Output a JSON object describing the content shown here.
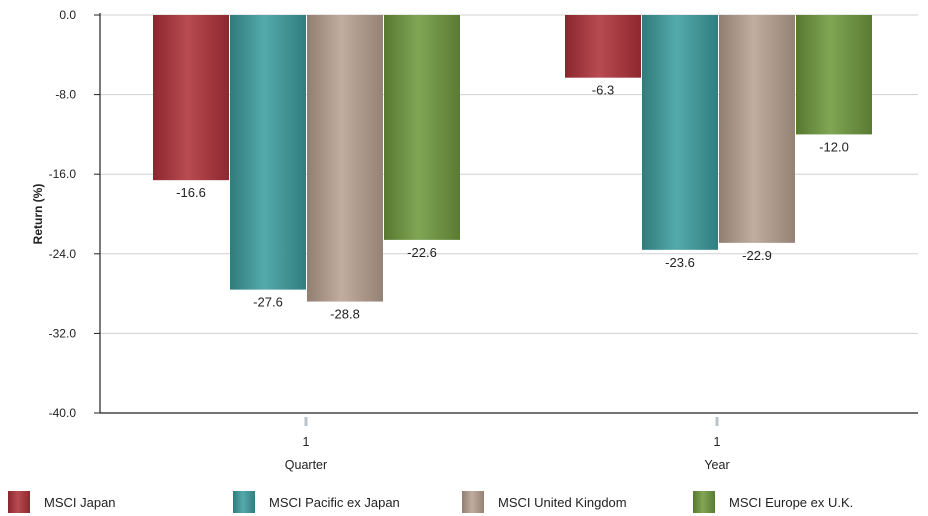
{
  "chart_data": {
    "type": "bar",
    "ylabel": "Return (%)",
    "ylim": [
      -40.0,
      0.0
    ],
    "y_ticks": [
      "0.0",
      "-8.0",
      "-16.0",
      "-24.0",
      "-32.0",
      "-40.0"
    ],
    "y_tick_values": [
      0,
      -8,
      -16,
      -24,
      -32,
      -40
    ],
    "categories": [
      {
        "top": "1",
        "bottom": "Quarter"
      },
      {
        "top": "1",
        "bottom": "Year"
      }
    ],
    "series": [
      {
        "name": "MSCI Japan",
        "color": "#b0323a",
        "values": [
          -16.6,
          -6.3
        ],
        "labels": [
          "-16.6",
          "-6.3"
        ]
      },
      {
        "name": "MSCI Pacific ex Japan",
        "color": "#3d9e9f",
        "values": [
          -27.6,
          -23.6
        ],
        "labels": [
          "-27.6",
          "-23.6"
        ]
      },
      {
        "name": "MSCI United Kingdom",
        "color": "#b9a292",
        "values": [
          -28.8,
          -22.9
        ],
        "labels": [
          "-28.8",
          "-22.9"
        ]
      },
      {
        "name": "MSCI Europe ex U.K.",
        "color": "#6f9a3e",
        "values": [
          -22.6,
          -12.0
        ],
        "labels": [
          "-22.6",
          "-12.0"
        ]
      }
    ],
    "grid": true,
    "legend_position": "bottom"
  }
}
